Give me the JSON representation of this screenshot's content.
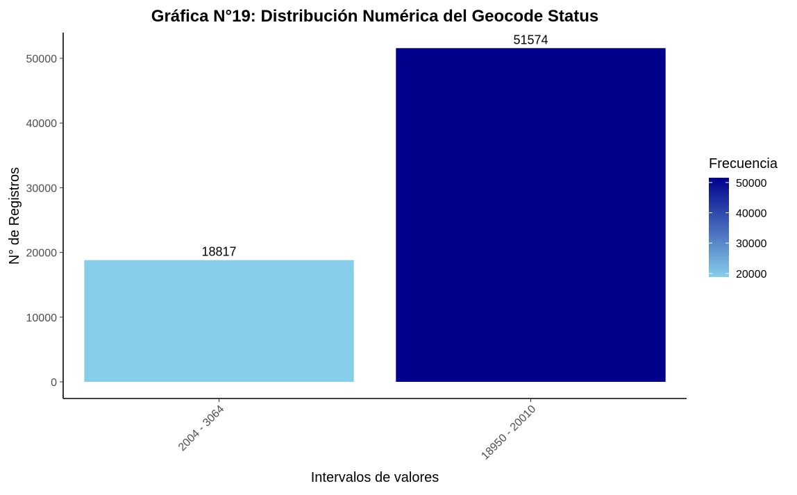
{
  "chart_data": {
    "type": "bar",
    "title": "Gráfica N°19: Distribución Numérica del Geocode Status",
    "xlabel": "Intervalos de valores",
    "ylabel": "N° de Registros",
    "categories": [
      "2004 - 3064",
      "18950 - 20010"
    ],
    "values": [
      18817,
      51574
    ],
    "data_labels": [
      "18817",
      "51574"
    ],
    "ylim": [
      0,
      53000
    ],
    "yticks": [
      0,
      10000,
      20000,
      30000,
      40000,
      50000
    ],
    "ytick_labels": [
      "0",
      "10000",
      "20000",
      "30000",
      "40000",
      "50000"
    ],
    "grid": false,
    "legend": {
      "title": "Frecuencia",
      "position": "right",
      "range": [
        18817,
        51574
      ],
      "ticks": [
        20000,
        30000,
        40000,
        50000
      ],
      "tick_labels": [
        "20000",
        "30000",
        "40000",
        "50000"
      ],
      "color_low": "#87CEEB",
      "color_high": "#00008B"
    }
  }
}
